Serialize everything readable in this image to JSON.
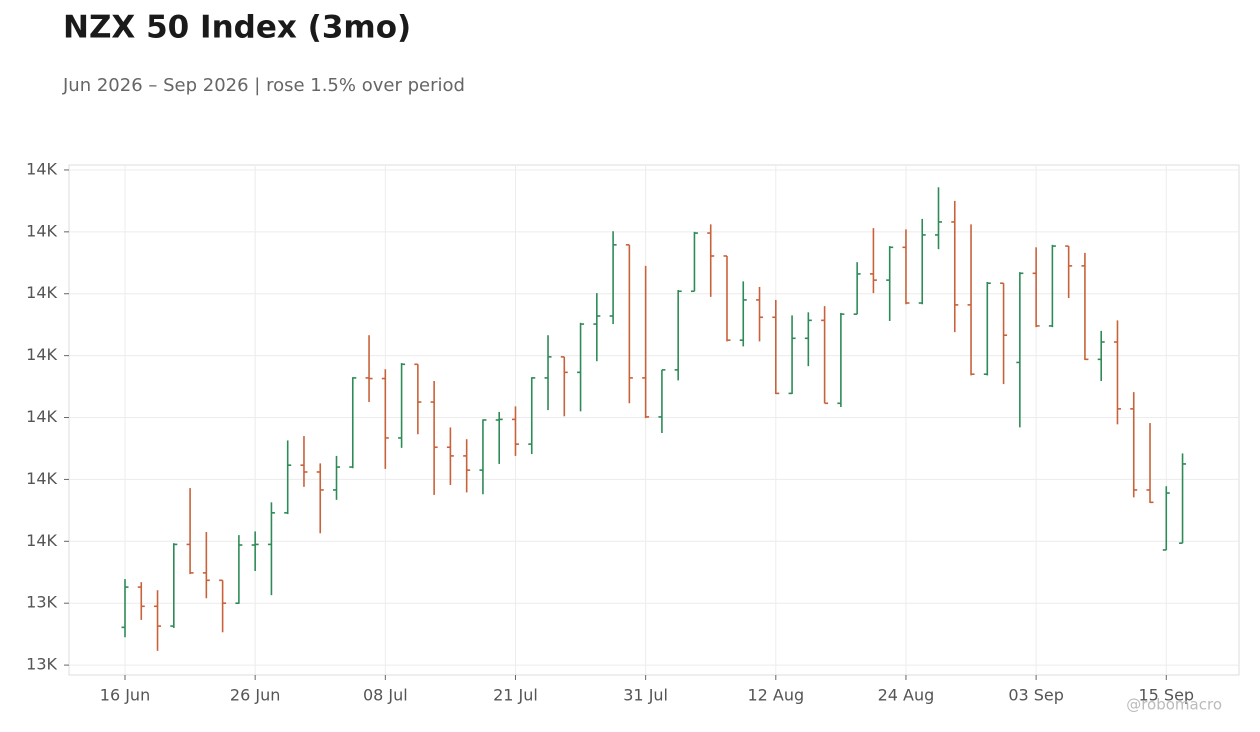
{
  "chart_data": {
    "type": "ohlc",
    "title": "NZX 50 Index (3mo)",
    "subtitle": "Jun 2026 – Sep 2026 | rose 1.5% over period",
    "watermark": "@robomacro",
    "categories": [
      "16 Jun",
      null,
      null,
      null,
      null,
      null,
      null,
      null,
      "26 Jun",
      null,
      null,
      null,
      null,
      null,
      null,
      null,
      "08 Jul",
      null,
      null,
      null,
      null,
      null,
      null,
      null,
      "21 Jul",
      null,
      null,
      null,
      null,
      null,
      null,
      null,
      "31 Jul",
      null,
      null,
      null,
      null,
      null,
      null,
      null,
      "12 Aug",
      null,
      null,
      null,
      null,
      null,
      null,
      null,
      "24 Aug",
      null,
      null,
      null,
      null,
      null,
      null,
      null,
      "03 Sep",
      null,
      null,
      null,
      null,
      null,
      null,
      null,
      "15 Sep",
      null
    ],
    "open": [
      13361,
      13426,
      13395,
      13363,
      13495,
      13449,
      13437,
      13400,
      13494,
      13495,
      13546,
      13623,
      13612,
      13583,
      13620,
      13764,
      13763,
      13667,
      13786,
      13725,
      13652,
      13638,
      13615,
      13696,
      13697,
      13657,
      13764,
      13798,
      13773,
      13851,
      13864,
      13979,
      13764,
      13701,
      13777,
      13904,
      13998,
      13961,
      13825,
      13890,
      13862,
      13739,
      13828,
      13857,
      13723,
      13867,
      13932,
      13922,
      13975,
      13885,
      13995,
      14016,
      13882,
      13770,
      13917,
      13789,
      13933,
      13848,
      13977,
      13945,
      13794,
      13822,
      13714,
      13583,
      13486,
      13497
    ],
    "high": [
      13439,
      13434,
      13421,
      13497,
      13586,
      13515,
      13437,
      13510,
      13516,
      13563,
      13663,
      13670,
      13626,
      13638,
      13765,
      13833,
      13778,
      13788,
      13786,
      13759,
      13684,
      13665,
      13697,
      13709,
      13718,
      13765,
      13833,
      13798,
      13853,
      13901,
      14001,
      13979,
      13945,
      13777,
      13906,
      14000,
      14012,
      13961,
      13920,
      13911,
      13890,
      13865,
      13870,
      13880,
      13869,
      13951,
      14006,
      13977,
      14004,
      14021,
      14072,
      14050,
      14012,
      13919,
      13917,
      13935,
      13975,
      13979,
      13977,
      13966,
      13840,
      13857,
      13741,
      13691,
      13589,
      13642
    ],
    "low": [
      13345,
      13373,
      13323,
      13360,
      13447,
      13408,
      13353,
      13399,
      13452,
      13413,
      13544,
      13588,
      13513,
      13567,
      13618,
      13725,
      13617,
      13651,
      13673,
      13575,
      13591,
      13579,
      13576,
      13625,
      13638,
      13641,
      13712,
      13702,
      13710,
      13791,
      13851,
      13723,
      13699,
      13675,
      13760,
      13904,
      13895,
      13823,
      13815,
      13823,
      13738,
      13738,
      13783,
      13723,
      13717,
      13867,
      13901,
      13856,
      13883,
      13883,
      13972,
      13838,
      13768,
      13768,
      13754,
      13684,
      13846,
      13846,
      13893,
      13793,
      13759,
      13689,
      13571,
      13562,
      13486,
      13497
    ],
    "close": [
      13426,
      13395,
      13363,
      13495,
      13449,
      13437,
      13400,
      13494,
      13495,
      13546,
      13623,
      13612,
      13583,
      13620,
      13764,
      13763,
      13667,
      13786,
      13725,
      13652,
      13638,
      13615,
      13696,
      13697,
      13657,
      13764,
      13798,
      13773,
      13851,
      13864,
      13979,
      13764,
      13701,
      13777,
      13904,
      13998,
      13961,
      13825,
      13890,
      13862,
      13739,
      13828,
      13857,
      13723,
      13867,
      13932,
      13922,
      13975,
      13885,
      13995,
      14016,
      13882,
      13770,
      13917,
      13833,
      13933,
      13848,
      13977,
      13945,
      13794,
      13822,
      13714,
      13583,
      13563,
      13578,
      13625
    ],
    "up_color": "#2e8b57",
    "down_color": "#c8623a",
    "ylim": [
      13284,
      14108
    ],
    "yticks": [
      {
        "value": 13300,
        "label": "13K"
      },
      {
        "value": 13400,
        "label": "13K"
      },
      {
        "value": 13500,
        "label": "14K"
      },
      {
        "value": 13600,
        "label": "14K"
      },
      {
        "value": 13700,
        "label": "14K"
      },
      {
        "value": 13800,
        "label": "14K"
      },
      {
        "value": 13900,
        "label": "14K"
      },
      {
        "value": 14000,
        "label": "14K"
      },
      {
        "value": 14100,
        "label": "14K"
      }
    ],
    "grid": true
  }
}
